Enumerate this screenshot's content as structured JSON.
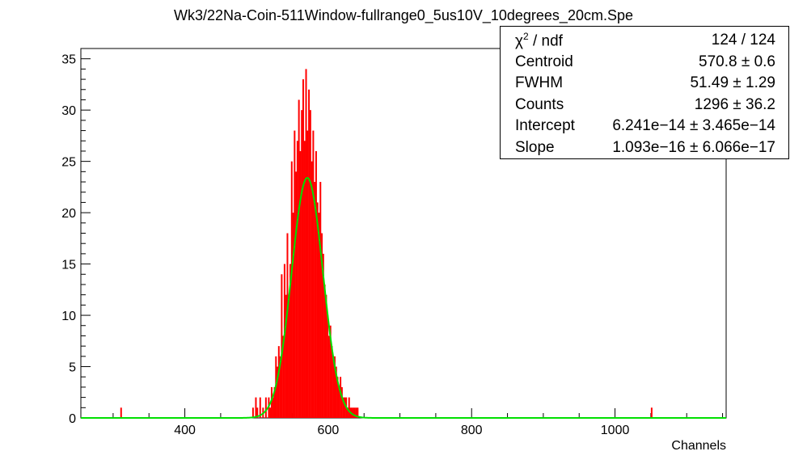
{
  "chart_data": {
    "type": "histogram",
    "title": "Wk3/22Na-Coin-511Window-fullrange0_5us10V_10degrees_20cm.Spe",
    "xlabel": "Channels",
    "ylabel": "",
    "xlim": [
      255,
      1155
    ],
    "ylim": [
      0,
      36
    ],
    "x_ticks": [
      400,
      600,
      800,
      1000
    ],
    "y_ticks": [
      0,
      5,
      10,
      15,
      20,
      25,
      30,
      35
    ],
    "grid": false,
    "colors": {
      "histogram": "#ff0000",
      "fit": "#00e000",
      "frame": "#000000"
    },
    "series": [
      {
        "type": "histogram",
        "bin_width": 2,
        "bin_starts": [
          310,
          494,
          498,
          500,
          504,
          508,
          512,
          516,
          518,
          520,
          522,
          524,
          526,
          528,
          530,
          532,
          534,
          536,
          538,
          540,
          542,
          544,
          546,
          548,
          550,
          552,
          554,
          556,
          558,
          560,
          562,
          564,
          566,
          568,
          570,
          572,
          574,
          576,
          578,
          580,
          582,
          584,
          586,
          588,
          590,
          592,
          594,
          596,
          598,
          600,
          602,
          604,
          606,
          608,
          610,
          612,
          614,
          616,
          618,
          620,
          622,
          624,
          626,
          628,
          630,
          632,
          634,
          636,
          638,
          640,
          1050
        ],
        "counts": [
          1,
          1,
          2,
          1,
          2,
          1,
          2,
          2,
          1,
          3,
          2,
          3,
          6,
          5,
          7,
          6,
          14,
          8,
          15,
          12,
          18,
          12,
          15,
          25,
          20,
          28,
          24,
          27,
          31,
          26,
          30,
          33,
          27,
          34,
          28,
          32,
          30,
          25,
          28,
          23,
          26,
          21,
          20,
          23,
          18,
          16,
          13,
          12,
          10,
          8,
          9,
          7,
          6,
          6,
          5,
          4,
          3,
          4,
          3,
          2,
          2,
          2,
          1,
          2,
          1,
          1,
          1,
          1,
          1,
          1,
          1
        ]
      },
      {
        "type": "line",
        "name": "fit",
        "model": "gaussian + linear background",
        "amplitude": 23.4,
        "centroid": 570.8,
        "fwhm": 51.49,
        "x_range": [
          255,
          1155
        ]
      }
    ]
  },
  "stats": [
    {
      "label_html": "&chi;<sup style=\"font-size:12px\">2</sup> / ndf",
      "value": "124 / 124"
    },
    {
      "label": "Centroid",
      "value": "570.8 ± 0.6"
    },
    {
      "label": "FWHM",
      "value": "51.49 ± 1.29"
    },
    {
      "label": "Counts",
      "value": "1296 ± 36.2"
    },
    {
      "label": "Intercept",
      "value": "6.241e−14 ± 3.465e−14"
    },
    {
      "label": "Slope",
      "value": "1.093e−16 ± 6.066e−17"
    }
  ]
}
